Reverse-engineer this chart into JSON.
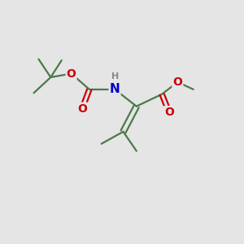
{
  "background_color": "#e5e5e5",
  "C_color": "#4a7a4a",
  "O_color": "#cc0000",
  "N_color": "#0000cc",
  "H_color": "#888888",
  "bond_color": "#4a7a4a",
  "bond_width": 1.6,
  "figsize": [
    3.0,
    3.0
  ],
  "dpi": 100,
  "xlim": [
    0,
    10
  ],
  "ylim": [
    0,
    10
  ]
}
